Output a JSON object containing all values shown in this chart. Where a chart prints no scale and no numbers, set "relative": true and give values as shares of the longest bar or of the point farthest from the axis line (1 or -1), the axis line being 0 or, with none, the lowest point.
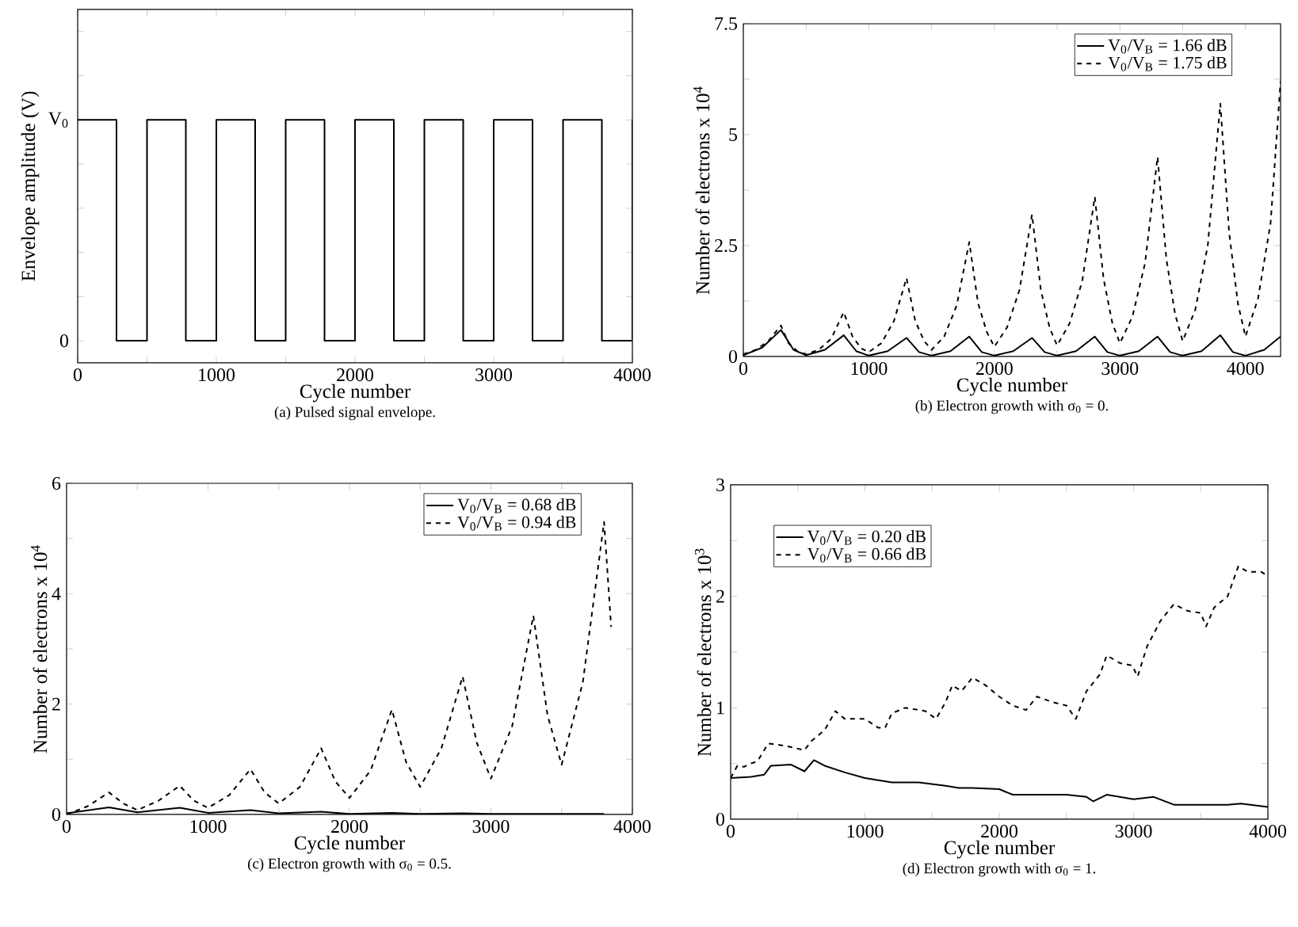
{
  "chart_data": [
    {
      "type": "step",
      "relative": true,
      "title": "(a) Pulsed signal envelope.",
      "xlabel": "Cycle number",
      "ylabel": "Envelope amplitude (V)",
      "xlim": [
        0,
        4000
      ],
      "annotations": [
        "0",
        "V$_{0}$"
      ],
      "xticks": [
        0,
        {
          "value": 500,
          "label": null
        },
        1000,
        {
          "value": 1500,
          "label": null
        },
        2000,
        {
          "value": 2500,
          "label": null
        },
        3000,
        {
          "value": 3500,
          "label": null
        },
        4000
      ],
      "series": [
        {
          "color": "#000000",
          "line_style": "solid",
          "x": [
            0,
            280,
            500,
            780,
            1000,
            1280,
            1500,
            1780,
            2000,
            2280,
            2500,
            2780,
            3000,
            3280,
            3500,
            3780,
            4000
          ],
          "values": [
            1,
            0,
            1,
            0,
            1,
            0,
            1,
            0,
            1,
            0,
            1,
            0,
            1,
            0,
            1,
            0,
            1
          ]
        }
      ]
    },
    {
      "type": "line",
      "title": "(b) Electron growth with σ$_{0}$ = 0.",
      "xlabel": "Cycle number",
      "ylabel": "Number of electrons x 10$^{4}$",
      "xlim": [
        0,
        4280
      ],
      "ylim": [
        0,
        7.5
      ],
      "legend": "top right",
      "xticks": [
        0,
        {
          "value": 500,
          "label": null
        },
        1000,
        {
          "value": 1500,
          "label": null
        },
        2000,
        {
          "value": 2500,
          "label": null
        },
        3000,
        {
          "value": 3500,
          "label": null
        },
        4000
      ],
      "yticks": [
        0,
        {
          "value": 1.25,
          "label": null
        },
        2.5,
        {
          "value": 3.75,
          "label": null
        },
        5,
        {
          "value": 6.25,
          "label": null
        },
        7.5
      ],
      "series": [
        {
          "name": "V$_{0}$/V$_{B}$ = 1.66 dB",
          "color": "#000000",
          "line_style": "solid",
          "x": [
            0,
            150,
            300,
            400,
            500,
            650,
            800,
            900,
            1000,
            1150,
            1300,
            1400,
            1500,
            1650,
            1800,
            1900,
            2000,
            2150,
            2300,
            2400,
            2500,
            2650,
            2800,
            2900,
            3000,
            3150,
            3300,
            3400,
            3500,
            3650,
            3800,
            3900,
            4000,
            4150,
            4280
          ],
          "values": [
            0.03,
            0.2,
            0.6,
            0.15,
            0.03,
            0.15,
            0.48,
            0.12,
            0.02,
            0.12,
            0.42,
            0.1,
            0.02,
            0.12,
            0.45,
            0.1,
            0.02,
            0.12,
            0.42,
            0.1,
            0.02,
            0.12,
            0.45,
            0.1,
            0.02,
            0.12,
            0.45,
            0.1,
            0.02,
            0.12,
            0.48,
            0.1,
            0.02,
            0.15,
            0.45
          ]
        },
        {
          "name": "V$_{0}$/V$_{B}$ = 1.75 dB",
          "color": "#000000",
          "line_style": "dashed",
          "x": [
            0,
            100,
            200,
            300,
            360,
            430,
            500,
            600,
            700,
            800,
            870,
            940,
            1000,
            1100,
            1200,
            1300,
            1370,
            1440,
            1500,
            1600,
            1700,
            1800,
            1870,
            1940,
            2000,
            2100,
            2200,
            2300,
            2370,
            2440,
            2500,
            2600,
            2700,
            2800,
            2870,
            2940,
            3000,
            3100,
            3200,
            3300,
            3370,
            3440,
            3500,
            3600,
            3700,
            3800,
            3870,
            3940,
            4000,
            4100,
            4200,
            4280
          ],
          "values": [
            0.05,
            0.15,
            0.35,
            0.7,
            0.3,
            0.12,
            0.05,
            0.15,
            0.4,
            1.0,
            0.45,
            0.18,
            0.1,
            0.3,
            0.8,
            1.77,
            0.8,
            0.35,
            0.15,
            0.45,
            1.15,
            2.58,
            1.2,
            0.55,
            0.22,
            0.65,
            1.5,
            3.2,
            1.5,
            0.65,
            0.25,
            0.75,
            1.7,
            3.6,
            1.75,
            0.75,
            0.3,
            0.9,
            2.1,
            4.5,
            2.2,
            0.95,
            0.35,
            1.05,
            2.5,
            5.7,
            2.8,
            1.2,
            0.45,
            1.3,
            3.0,
            6.2
          ]
        }
      ]
    },
    {
      "type": "line",
      "title": "(c) Electron growth with σ$_{0}$ = 0.5.",
      "xlabel": "Cycle number",
      "ylabel": "Number of electrons x 10$^{4}$",
      "xlim": [
        0,
        4000
      ],
      "ylim": [
        0,
        6
      ],
      "legend": "top right",
      "xticks": [
        0,
        {
          "value": 500,
          "label": null
        },
        1000,
        {
          "value": 1500,
          "label": null
        },
        2000,
        {
          "value": 2500,
          "label": null
        },
        3000,
        {
          "value": 3500,
          "label": null
        },
        4000
      ],
      "yticks": [
        0,
        {
          "value": 1,
          "label": null
        },
        2,
        {
          "value": 3,
          "label": null
        },
        4,
        {
          "value": 5,
          "label": null
        },
        6
      ],
      "series": [
        {
          "name": "V$_{0}$/V$_{B}$ = 0.68 dB",
          "color": "#000000",
          "line_style": "solid",
          "x": [
            0,
            300,
            500,
            800,
            1000,
            1300,
            1500,
            1800,
            2000,
            2300,
            2500,
            2800,
            3000,
            3300,
            3500,
            3800
          ],
          "values": [
            0.02,
            0.13,
            0.04,
            0.12,
            0.03,
            0.08,
            0.02,
            0.05,
            0.01,
            0.03,
            0.01,
            0.02,
            0.01,
            0.01,
            0.01,
            0.01
          ]
        },
        {
          "name": "V$_{0}$/V$_{B}$ = 0.94 dB",
          "color": "#000000",
          "line_style": "dashed",
          "x": [
            0,
            150,
            300,
            400,
            500,
            650,
            800,
            900,
            1000,
            1150,
            1300,
            1400,
            1500,
            1650,
            1800,
            1900,
            2000,
            2150,
            2300,
            2400,
            2500,
            2650,
            2800,
            2900,
            3000,
            3150,
            3300,
            3400,
            3500,
            3650,
            3800,
            3850
          ],
          "values": [
            0,
            0.15,
            0.4,
            0.2,
            0.08,
            0.25,
            0.52,
            0.25,
            0.12,
            0.35,
            0.82,
            0.4,
            0.2,
            0.5,
            1.2,
            0.6,
            0.3,
            0.8,
            1.9,
            0.95,
            0.5,
            1.2,
            2.5,
            1.3,
            0.65,
            1.6,
            3.6,
            1.8,
            0.9,
            2.4,
            5.3,
            3.4
          ]
        }
      ]
    },
    {
      "type": "line",
      "title": "(d) Electron growth with σ$_{0}$ = 1.",
      "xlabel": "Cycle number",
      "ylabel": "Number of electrons x 10$^{3}$",
      "xlim": [
        0,
        4000
      ],
      "ylim": [
        0,
        3
      ],
      "legend": "top left",
      "xticks": [
        0,
        {
          "value": 500,
          "label": null
        },
        1000,
        {
          "value": 1500,
          "label": null
        },
        2000,
        {
          "value": 2500,
          "label": null
        },
        3000,
        {
          "value": 3500,
          "label": null
        },
        4000
      ],
      "yticks": [
        0,
        {
          "value": 0.5,
          "label": null
        },
        1,
        {
          "value": 1.5,
          "label": null
        },
        2,
        {
          "value": 2.5,
          "label": null
        },
        3
      ],
      "series": [
        {
          "name": "V$_{0}$/V$_{B}$ = 0.20 dB",
          "color": "#000000",
          "line_style": "solid",
          "x": [
            0,
            150,
            250,
            300,
            450,
            550,
            620,
            700,
            850,
            1000,
            1200,
            1400,
            1600,
            1700,
            1800,
            2000,
            2100,
            2300,
            2500,
            2650,
            2700,
            2800,
            3000,
            3150,
            3300,
            3500,
            3700,
            3800,
            4000
          ],
          "values": [
            0.37,
            0.38,
            0.4,
            0.48,
            0.49,
            0.43,
            0.53,
            0.48,
            0.42,
            0.37,
            0.33,
            0.33,
            0.3,
            0.28,
            0.28,
            0.27,
            0.22,
            0.22,
            0.22,
            0.2,
            0.16,
            0.22,
            0.18,
            0.2,
            0.13,
            0.13,
            0.13,
            0.14,
            0.11
          ]
        },
        {
          "name": "V$_{0}$/V$_{B}$ = 0.66 dB",
          "color": "#000000",
          "line_style": "dashed",
          "x": [
            0,
            50,
            100,
            150,
            200,
            280,
            400,
            550,
            600,
            700,
            780,
            850,
            1000,
            1100,
            1150,
            1200,
            1300,
            1450,
            1530,
            1600,
            1650,
            1720,
            1800,
            1900,
            2000,
            2100,
            2200,
            2280,
            2400,
            2500,
            2570,
            2650,
            2750,
            2800,
            2900,
            2990,
            3030,
            3100,
            3200,
            3300,
            3400,
            3500,
            3540,
            3600,
            3700,
            3780,
            3850,
            3950,
            4000
          ],
          "values": [
            0.37,
            0.48,
            0.47,
            0.5,
            0.52,
            0.68,
            0.66,
            0.62,
            0.7,
            0.8,
            0.97,
            0.9,
            0.9,
            0.82,
            0.82,
            0.95,
            1.0,
            0.97,
            0.9,
            1.05,
            1.2,
            1.15,
            1.27,
            1.2,
            1.1,
            1.02,
            0.98,
            1.1,
            1.05,
            1.02,
            0.9,
            1.15,
            1.3,
            1.47,
            1.4,
            1.38,
            1.28,
            1.55,
            1.78,
            1.93,
            1.87,
            1.85,
            1.73,
            1.9,
            2.0,
            2.27,
            2.22,
            2.22,
            2.18
          ]
        }
      ]
    }
  ]
}
